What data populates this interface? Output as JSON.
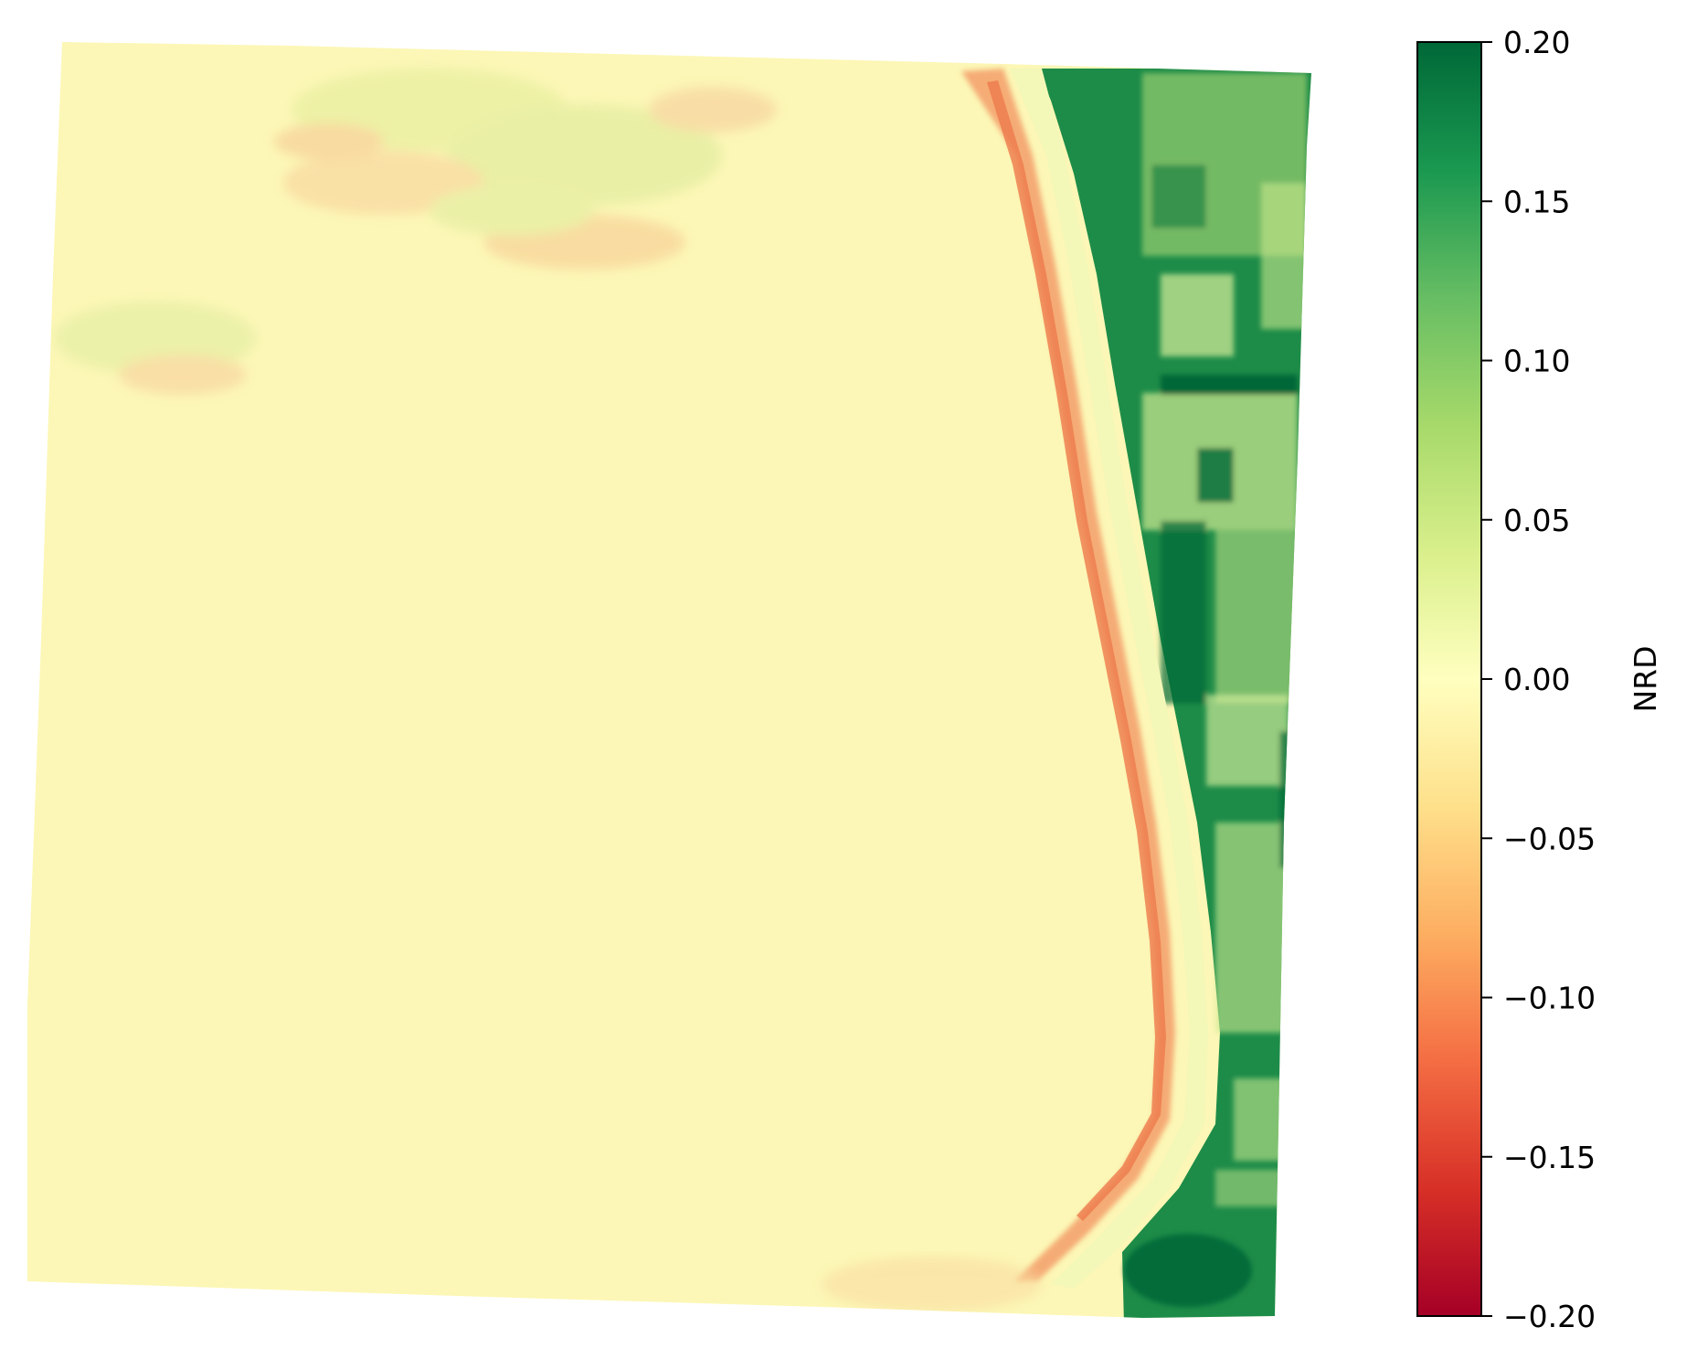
{
  "chart_data": {
    "type": "heatmap",
    "colormap": "RdYlGn",
    "colorbar": {
      "label": "NRD",
      "vmin": -0.2,
      "vmax": 0.2,
      "ticks": [
        {
          "value": 0.2,
          "label": "0.20"
        },
        {
          "value": 0.15,
          "label": "0.15"
        },
        {
          "value": 0.1,
          "label": "0.10"
        },
        {
          "value": 0.05,
          "label": "0.05"
        },
        {
          "value": 0.0,
          "label": "0.00"
        },
        {
          "value": -0.05,
          "label": "−0.05"
        },
        {
          "value": -0.1,
          "label": "−0.10"
        },
        {
          "value": -0.15,
          "label": "−0.15"
        },
        {
          "value": -0.2,
          "label": "−0.20"
        }
      ],
      "placement": "right"
    },
    "axes_visible": false,
    "regions": [
      {
        "name": "background",
        "value": -0.005
      },
      {
        "name": "shoreline",
        "value": -0.09
      },
      {
        "name": "land",
        "value": 0.12
      }
    ]
  }
}
